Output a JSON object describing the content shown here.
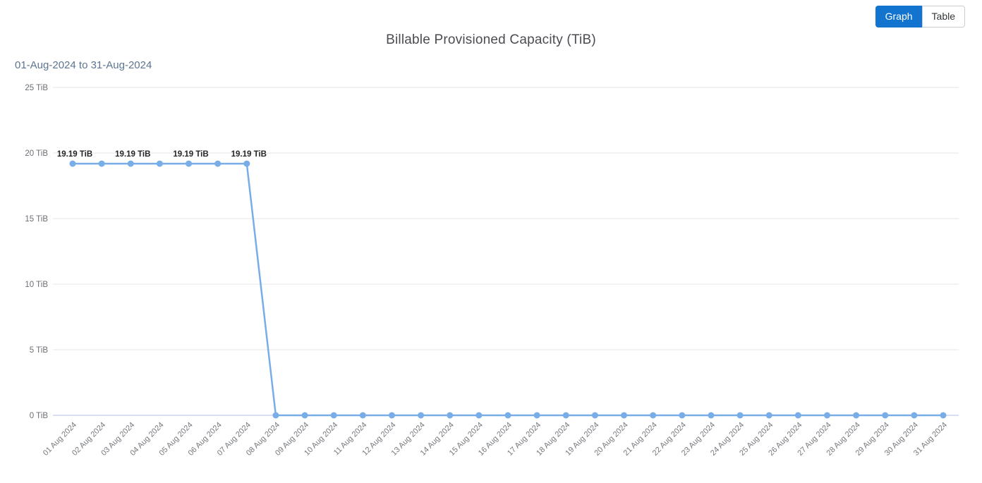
{
  "header": {
    "title": "Billable Provisioned Capacity (TiB)",
    "date_range": "01-Aug-2024 to 31-Aug-2024",
    "view_toggle": {
      "graph_label": "Graph",
      "table_label": "Table",
      "active": "Graph"
    }
  },
  "colors": {
    "accent_blue": "#1274cf",
    "line": "#79ade8",
    "title_text": "#4a4c52",
    "subtitle_text": "#5b7491",
    "axis_text": "#6b6f74",
    "x_label_text": "#75787d",
    "grid": "#e9e9e9",
    "zero_line": "#ccd4ee",
    "data_label_text": "#262626",
    "button_border": "#c9cdd2"
  },
  "chart_data": {
    "type": "line",
    "title": "Billable Provisioned Capacity (TiB)",
    "subtitle": "01-Aug-2024 to 31-Aug-2024",
    "series_name": "Billable Provisioned Capacity (TiB)",
    "x": [
      "01 Aug 2024",
      "02 Aug 2024",
      "03 Aug 2024",
      "04 Aug 2024",
      "05 Aug 2024",
      "06 Aug 2024",
      "07 Aug 2024",
      "08 Aug 2024",
      "09 Aug 2024",
      "10 Aug 2024",
      "11 Aug 2024",
      "12 Aug 2024",
      "13 Aug 2024",
      "14 Aug 2024",
      "15 Aug 2024",
      "16 Aug 2024",
      "17 Aug 2024",
      "18 Aug 2024",
      "19 Aug 2024",
      "20 Aug 2024",
      "21 Aug 2024",
      "22 Aug 2024",
      "23 Aug 2024",
      "24 Aug 2024",
      "25 Aug 2024",
      "26 Aug 2024",
      "27 Aug 2024",
      "28 Aug 2024",
      "29 Aug 2024",
      "30 Aug 2024",
      "31 Aug 2024"
    ],
    "values": [
      19.19,
      19.19,
      19.19,
      19.19,
      19.19,
      19.19,
      19.19,
      0,
      0,
      0,
      0,
      0,
      0,
      0,
      0,
      0,
      0,
      0,
      0,
      0,
      0,
      0,
      0,
      0,
      0,
      0,
      0,
      0,
      0,
      0,
      0
    ],
    "unit": "TiB",
    "ylim": [
      0,
      25
    ],
    "y_ticks": [
      {
        "value": 0,
        "label": "0 TiB"
      },
      {
        "value": 5,
        "label": "5 TiB"
      },
      {
        "value": 10,
        "label": "10 TiB"
      },
      {
        "value": 15,
        "label": "15 TiB"
      },
      {
        "value": 20,
        "label": "20 TiB"
      },
      {
        "value": 25,
        "label": "25 TiB"
      }
    ],
    "data_labels": [
      {
        "index": 0,
        "text": "19.19 TiB"
      },
      {
        "index": 2,
        "text": "19.19 TiB"
      },
      {
        "index": 4,
        "text": "19.19 TiB"
      },
      {
        "index": 6,
        "text": "19.19 TiB"
      }
    ],
    "grid": true,
    "legend": "none",
    "x_label_rotation": -45
  }
}
